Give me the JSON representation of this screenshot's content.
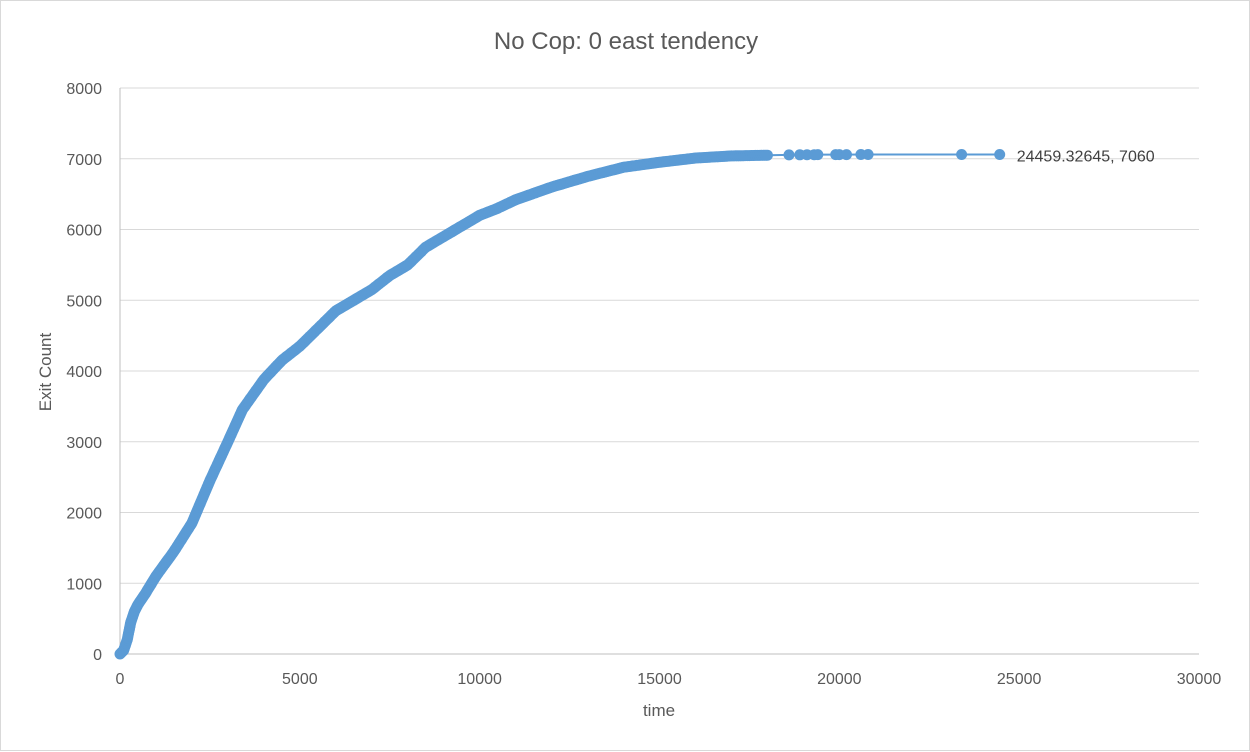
{
  "chart_data": {
    "type": "scatter",
    "title": "No Cop: 0 east tendency",
    "xlabel": "time",
    "ylabel": "Exit Count",
    "xlim": [
      0,
      30000
    ],
    "ylim": [
      0,
      8000
    ],
    "x_ticks": [
      "0",
      "5000",
      "10000",
      "15000",
      "20000",
      "25000",
      "30000"
    ],
    "y_ticks": [
      "0",
      "1000",
      "2000",
      "3000",
      "4000",
      "5000",
      "6000",
      "7000",
      "8000"
    ],
    "grid": "horizontal",
    "series_color": "#5b9bd5",
    "marker": "circle",
    "line": true,
    "curve": [
      [
        0,
        0
      ],
      [
        100,
        50
      ],
      [
        200,
        200
      ],
      [
        300,
        450
      ],
      [
        400,
        600
      ],
      [
        500,
        700
      ],
      [
        700,
        850
      ],
      [
        1000,
        1100
      ],
      [
        1500,
        1450
      ],
      [
        2000,
        1850
      ],
      [
        2500,
        2450
      ],
      [
        3000,
        3000
      ],
      [
        3400,
        3450
      ],
      [
        4000,
        3880
      ],
      [
        4500,
        4150
      ],
      [
        5000,
        4350
      ],
      [
        5500,
        4600
      ],
      [
        6000,
        4850
      ],
      [
        6500,
        5000
      ],
      [
        7000,
        5150
      ],
      [
        7500,
        5350
      ],
      [
        8000,
        5500
      ],
      [
        8500,
        5750
      ],
      [
        9000,
        5900
      ],
      [
        9500,
        6050
      ],
      [
        10000,
        6200
      ],
      [
        10500,
        6300
      ],
      [
        11000,
        6420
      ],
      [
        12000,
        6600
      ],
      [
        13000,
        6750
      ],
      [
        14000,
        6880
      ],
      [
        15000,
        6950
      ],
      [
        16000,
        7010
      ],
      [
        17000,
        7040
      ],
      [
        18000,
        7050
      ]
    ],
    "tail_points": [
      [
        18600,
        7055
      ],
      [
        18900,
        7056
      ],
      [
        19100,
        7057
      ],
      [
        19300,
        7057
      ],
      [
        19400,
        7058
      ],
      [
        19900,
        7058
      ],
      [
        20000,
        7059
      ],
      [
        20200,
        7059
      ],
      [
        20600,
        7060
      ],
      [
        20800,
        7060
      ],
      [
        23400,
        7060
      ],
      [
        24459.32645,
        7060
      ]
    ],
    "annotation": {
      "text": "24459.32645, 7060",
      "x": 24459.32645,
      "y": 7060
    }
  }
}
